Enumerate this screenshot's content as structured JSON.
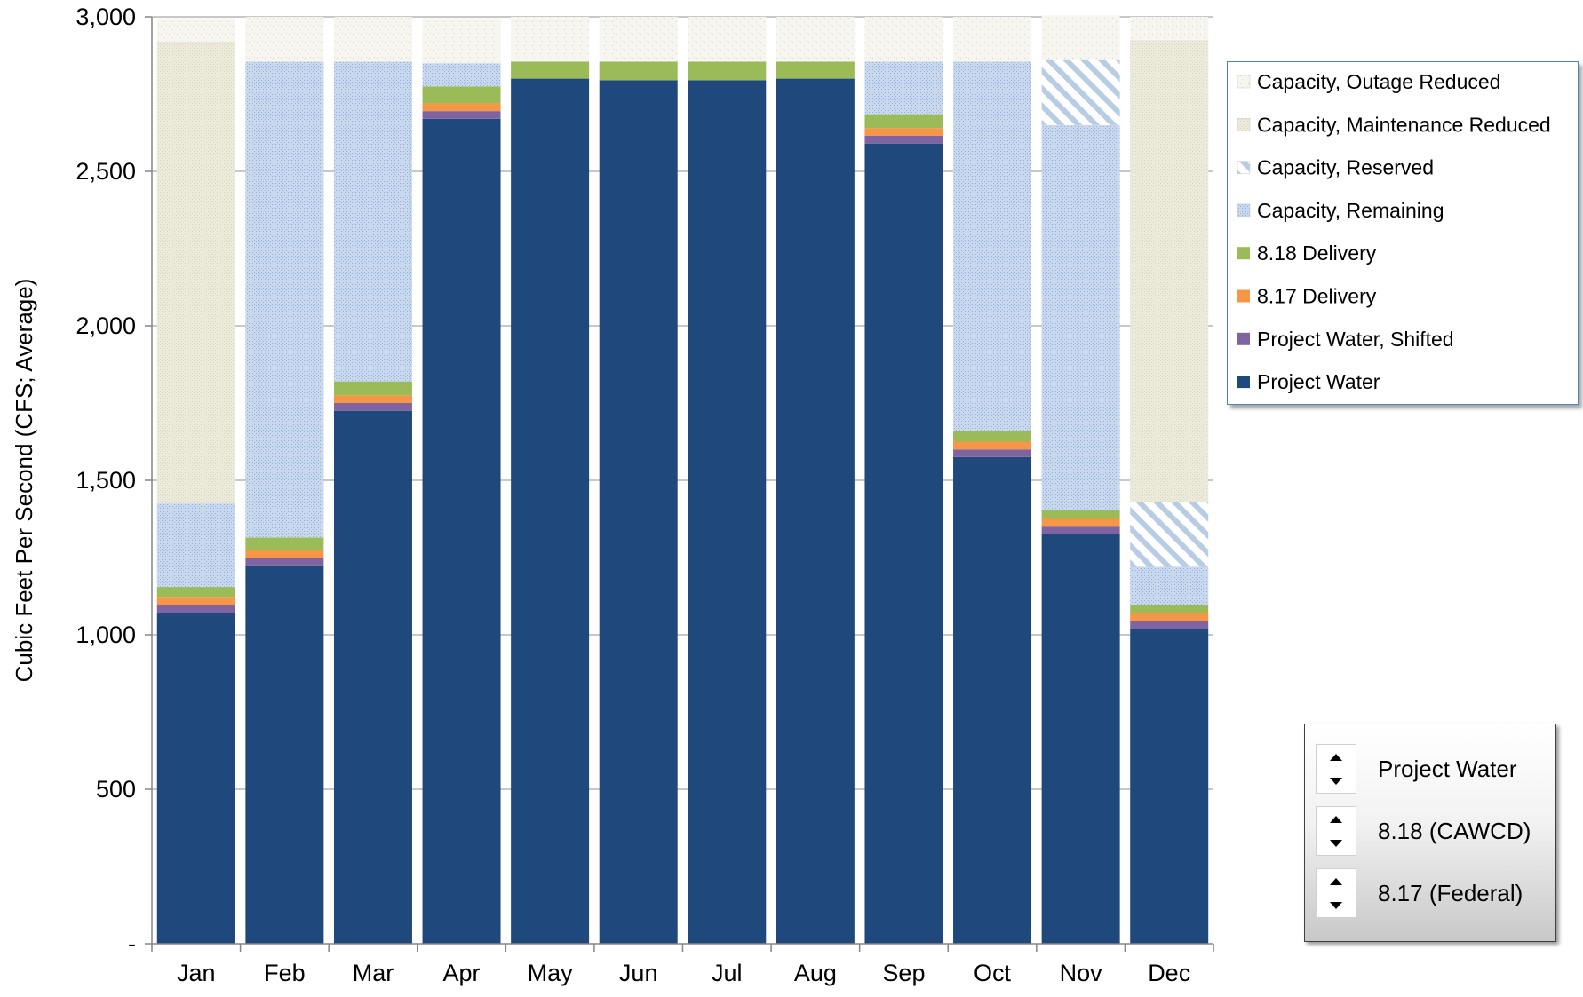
{
  "chart_data": {
    "type": "bar",
    "stacked": true,
    "categories": [
      "Jan",
      "Feb",
      "Mar",
      "Apr",
      "May",
      "Jun",
      "Jul",
      "Aug",
      "Sep",
      "Oct",
      "Nov",
      "Dec"
    ],
    "ylabel": "Cubic Feet Per Second (CFS; Average)",
    "ylim": [
      0,
      3000
    ],
    "y_ticks": [
      0,
      500,
      1000,
      1500,
      2000,
      2500,
      3000
    ],
    "y_tick_labels": [
      "-",
      "500",
      "1,000",
      "1,500",
      "2,000",
      "2,500",
      "3,000"
    ],
    "grid": true,
    "legend_position": "right",
    "series": [
      {
        "name": "Project Water",
        "color": "#1f497d",
        "pattern": "solid",
        "values": [
          1070,
          1225,
          1725,
          2670,
          2800,
          2795,
          2795,
          2800,
          2590,
          1575,
          1325,
          1020
        ]
      },
      {
        "name": "Project Water, Shifted",
        "color": "#8064a2",
        "pattern": "solid",
        "values": [
          25,
          25,
          25,
          25,
          0,
          0,
          0,
          0,
          25,
          25,
          25,
          25
        ]
      },
      {
        "name": "8.17 Delivery",
        "color": "#f79646",
        "pattern": "solid",
        "values": [
          25,
          25,
          25,
          25,
          0,
          0,
          0,
          0,
          25,
          25,
          25,
          25
        ]
      },
      {
        "name": "8.18 Delivery",
        "color": "#9bbb59",
        "pattern": "solid",
        "values": [
          35,
          40,
          45,
          55,
          55,
          60,
          60,
          55,
          45,
          35,
          30,
          25
        ]
      },
      {
        "name": "Capacity, Remaining",
        "color": "#b8cce4",
        "pattern": "dots",
        "values": [
          270,
          1540,
          1035,
          75,
          0,
          0,
          0,
          0,
          170,
          1195,
          1245,
          125
        ]
      },
      {
        "name": "Capacity, Reserved",
        "color": "#c6d9f1",
        "pattern": "diagonal",
        "values": [
          0,
          0,
          0,
          0,
          0,
          0,
          0,
          0,
          0,
          0,
          210,
          210
        ]
      },
      {
        "name": "Capacity, Maintenance Reduced",
        "color": "#eeece1",
        "pattern": "fine",
        "values": [
          1495,
          0,
          0,
          0,
          0,
          0,
          0,
          0,
          0,
          0,
          0,
          1495
        ]
      },
      {
        "name": "Capacity, Outage Reduced",
        "color": "#f2f2ee",
        "pattern": "speckle",
        "values": [
          75,
          145,
          145,
          145,
          145,
          145,
          145,
          145,
          145,
          145,
          145,
          75
        ]
      }
    ]
  },
  "legend": {
    "items": [
      {
        "label": "Capacity, Outage Reduced",
        "series_index": 7
      },
      {
        "label": "Capacity, Maintenance Reduced",
        "series_index": 6
      },
      {
        "label": "Capacity, Reserved",
        "series_index": 5
      },
      {
        "label": "Capacity, Remaining",
        "series_index": 4
      },
      {
        "label": "8.18 Delivery",
        "series_index": 3
      },
      {
        "label": "8.17 Delivery",
        "series_index": 2
      },
      {
        "label": "Project Water, Shifted",
        "series_index": 1
      },
      {
        "label": "Project Water",
        "series_index": 0
      }
    ]
  },
  "controls": {
    "rows": [
      {
        "label": "Project Water"
      },
      {
        "label": "8.18 (CAWCD)"
      },
      {
        "label": "8.17 (Federal)"
      }
    ]
  }
}
